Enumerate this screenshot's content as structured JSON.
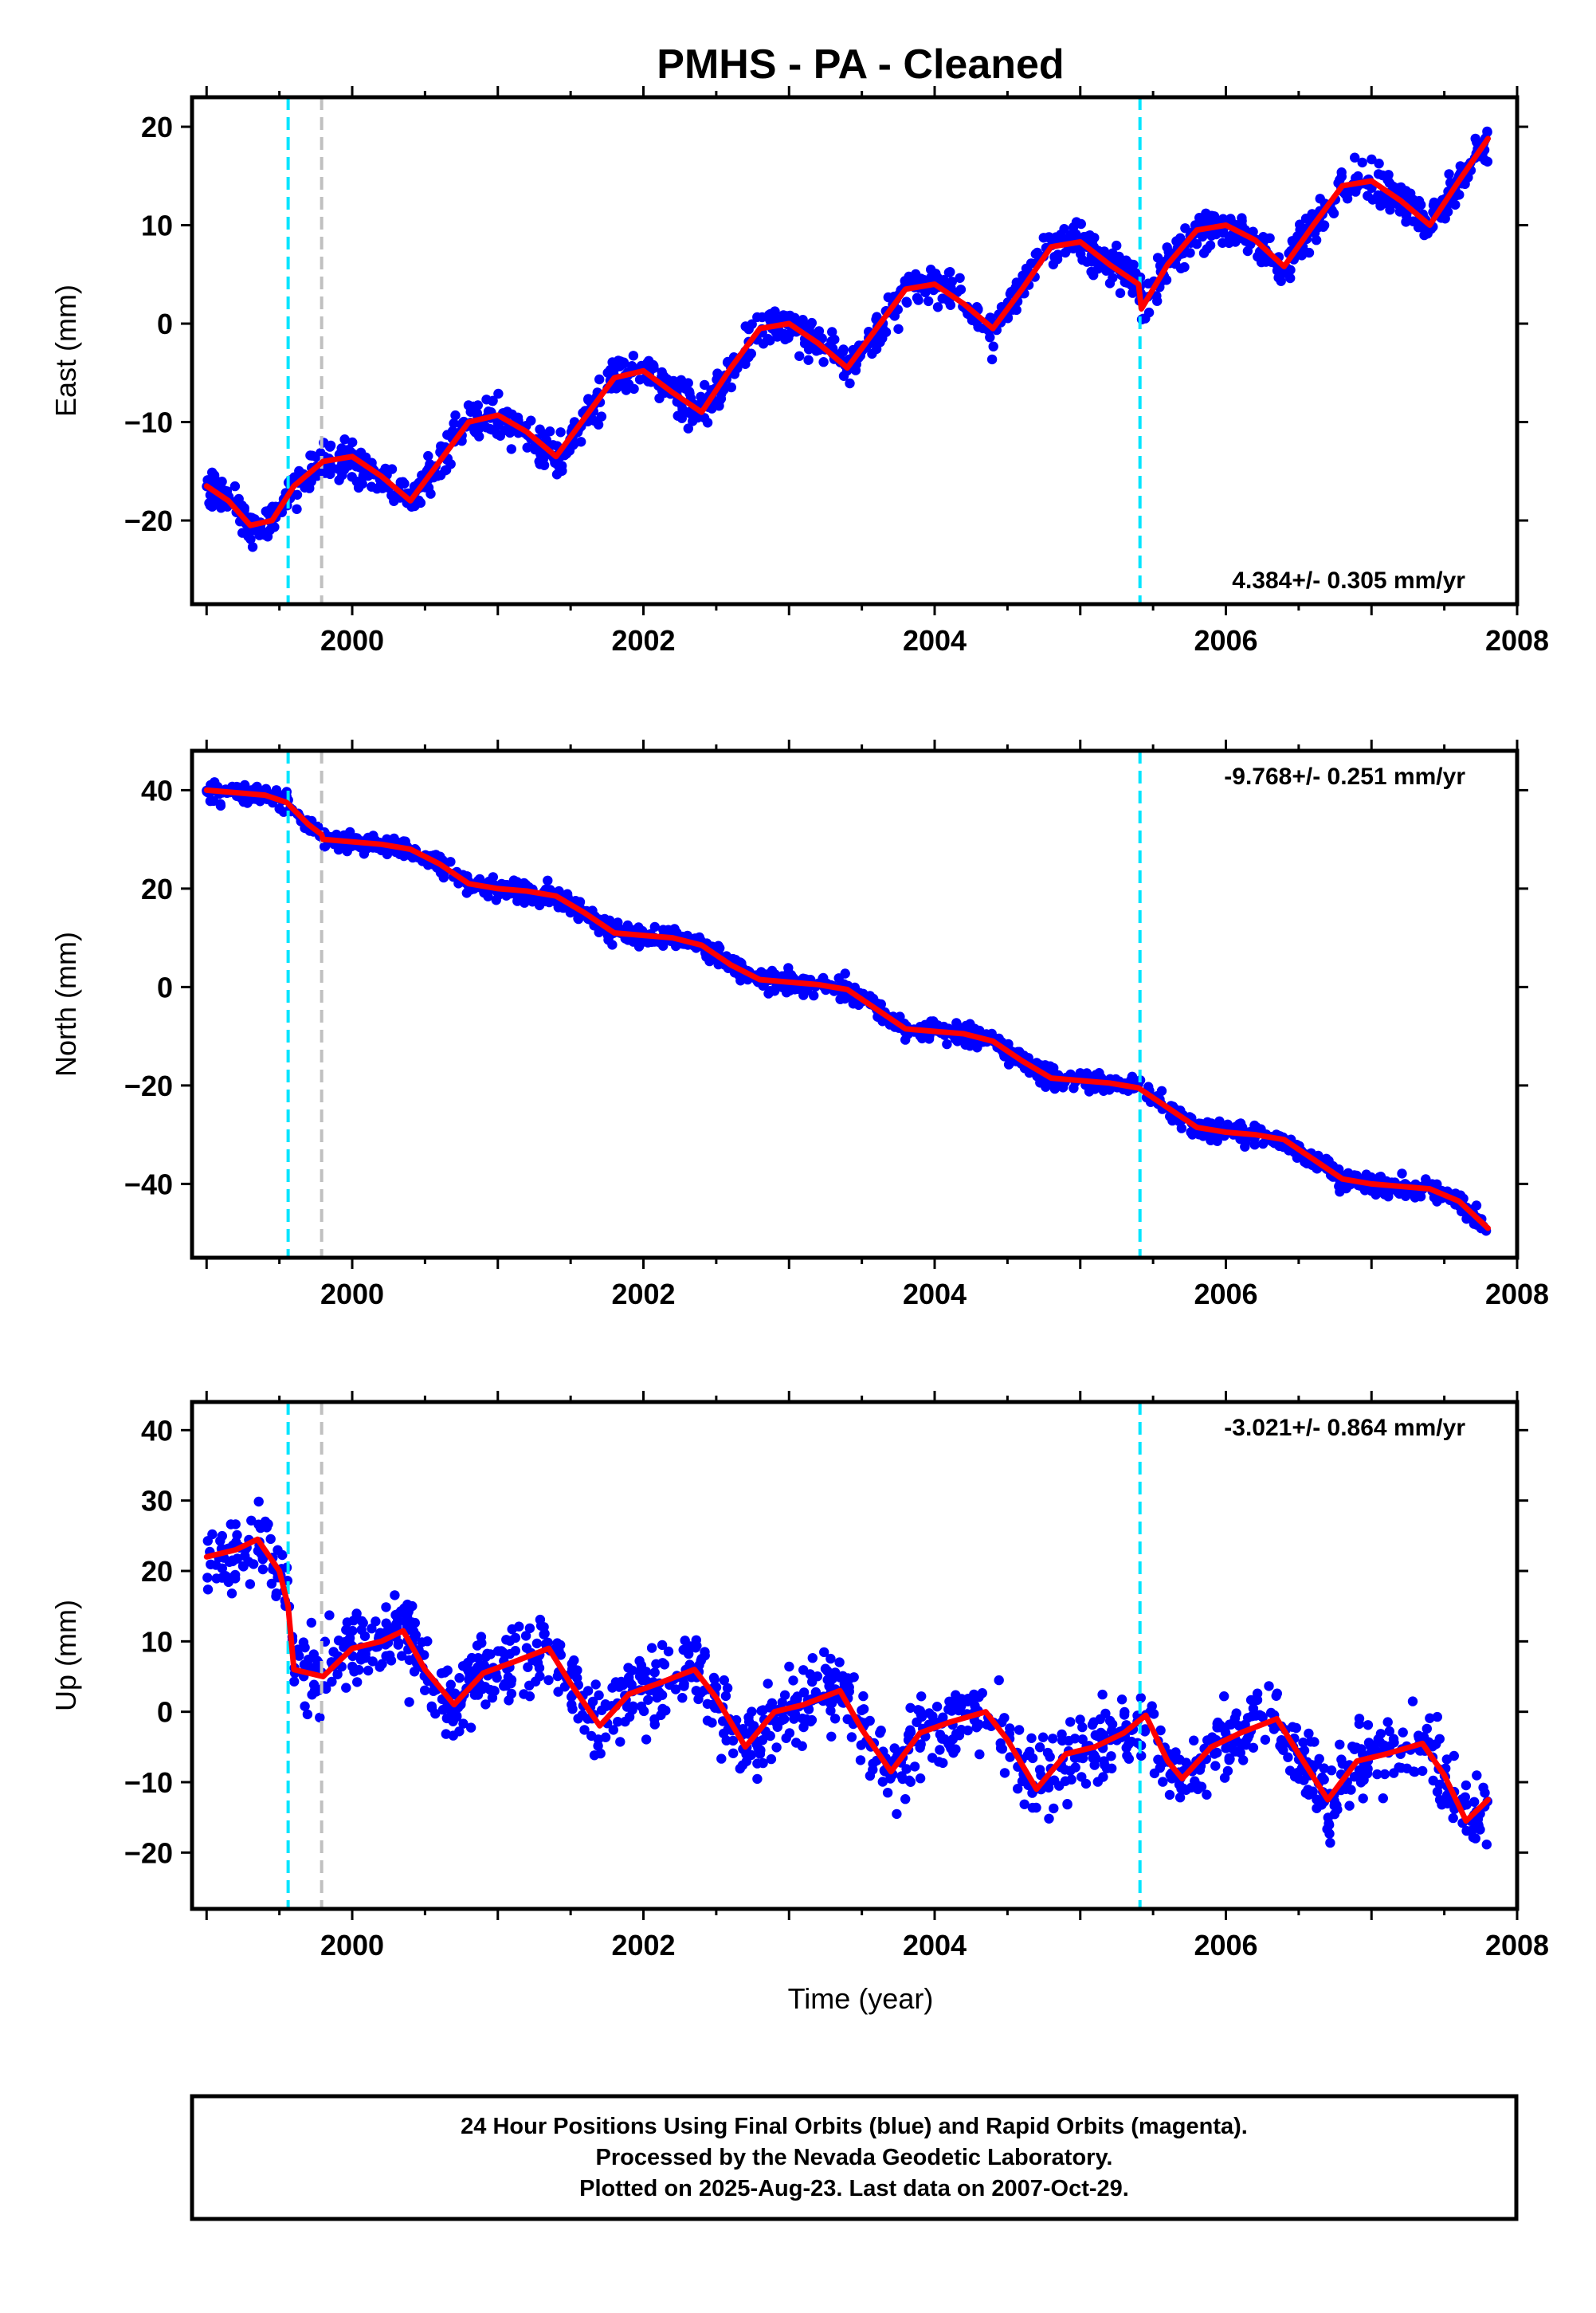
{
  "title": "PMHS  - PA - Cleaned",
  "xlabel": "Time (year)",
  "footer": [
    "24 Hour Positions Using Final Orbits (blue) and Rapid Orbits (magenta).",
    "Processed by the Nevada Geodetic Laboratory.",
    "Plotted on 2025-Aug-23. Last data on 2007-Oct-29."
  ],
  "colors": {
    "points": "#0000ff",
    "fit": "#ff0000",
    "equipment_change": "#00e5ff",
    "other_event": "#c0c0c0"
  },
  "event_lines": [
    {
      "x": 1999.56,
      "kind": "equipment_change"
    },
    {
      "x": 1999.79,
      "kind": "other_event"
    },
    {
      "x": 2005.41,
      "kind": "equipment_change"
    }
  ],
  "chart_data": [
    {
      "type": "scatter",
      "component": "East",
      "ylabel": "East (mm)",
      "rate_label": "4.384+/- 0.305 mm/yr",
      "rate_position": "bottom-right",
      "xlim": [
        1998.9,
        2008.0
      ],
      "ylim": [
        -28.5,
        23
      ],
      "xticks": [
        2000,
        2002,
        2004,
        2006,
        2008
      ],
      "xtick_labels": [
        "2000",
        "2002",
        "2004",
        "2006",
        "2008"
      ],
      "yticks": [
        -20,
        -10,
        0,
        10,
        20
      ],
      "ytick_labels": [
        "−20",
        "−10",
        "0",
        "10",
        "20"
      ],
      "fit": {
        "x": [
          1999.0,
          1999.15,
          1999.3,
          1999.45,
          1999.6,
          1999.8,
          2000.0,
          2000.2,
          2000.4,
          2000.6,
          2000.8,
          2001.0,
          2001.2,
          2001.4,
          2001.6,
          2001.8,
          2002.0,
          2002.2,
          2002.4,
          2002.6,
          2002.8,
          2003.0,
          2003.2,
          2003.4,
          2003.6,
          2003.8,
          2004.0,
          2004.2,
          2004.4,
          2004.6,
          2004.8,
          2005.0,
          2005.2,
          2005.4,
          2005.42,
          2005.6,
          2005.8,
          2006.0,
          2006.2,
          2006.4,
          2006.6,
          2006.8,
          2007.0,
          2007.2,
          2007.4,
          2007.6,
          2007.8
        ],
        "y": [
          -16.5,
          -18.0,
          -20.5,
          -20.0,
          -16.5,
          -14.0,
          -13.5,
          -15.5,
          -18.0,
          -14.0,
          -10.0,
          -9.3,
          -11.0,
          -13.5,
          -9.5,
          -5.5,
          -4.8,
          -7.0,
          -9.0,
          -4.5,
          -0.5,
          0.0,
          -2.0,
          -4.5,
          -0.5,
          3.5,
          4.0,
          2.0,
          -0.5,
          3.5,
          7.8,
          8.3,
          6.0,
          4.0,
          1.5,
          6.0,
          9.5,
          10.0,
          8.5,
          5.8,
          10.0,
          14.0,
          14.5,
          12.5,
          10.0,
          14.5,
          18.8
        ]
      },
      "scatter": {
        "spread": 1.7,
        "density": 150
      }
    },
    {
      "type": "scatter",
      "component": "North",
      "ylabel": "North (mm)",
      "rate_label": "-9.768+/- 0.251 mm/yr",
      "rate_position": "top-right",
      "xlim": [
        1998.9,
        2008.0
      ],
      "ylim": [
        -55,
        48
      ],
      "xticks": [
        2000,
        2002,
        2004,
        2006,
        2008
      ],
      "xtick_labels": [
        "2000",
        "2002",
        "2004",
        "2006",
        "2008"
      ],
      "yticks": [
        -40,
        -20,
        0,
        20,
        40
      ],
      "ytick_labels": [
        "−40",
        "−20",
        "0",
        "20",
        "40"
      ],
      "fit": {
        "x": [
          1999.0,
          1999.2,
          1999.4,
          1999.55,
          1999.7,
          1999.79,
          1999.8,
          2000.0,
          2000.2,
          2000.4,
          2000.6,
          2000.8,
          2001.0,
          2001.2,
          2001.4,
          2001.6,
          2001.8,
          2002.0,
          2002.2,
          2002.4,
          2002.6,
          2002.8,
          2003.0,
          2003.2,
          2003.4,
          2003.6,
          2003.8,
          2004.0,
          2004.2,
          2004.4,
          2004.6,
          2004.8,
          2005.0,
          2005.2,
          2005.4,
          2005.6,
          2005.8,
          2006.0,
          2006.2,
          2006.4,
          2006.6,
          2006.8,
          2007.0,
          2007.2,
          2007.4,
          2007.6,
          2007.8
        ],
        "y": [
          40.0,
          39.5,
          39.0,
          37.5,
          33.0,
          31.0,
          30.0,
          29.5,
          29.0,
          28.0,
          25.0,
          21.0,
          20.0,
          19.5,
          18.5,
          15.0,
          11.0,
          10.5,
          10.0,
          8.5,
          4.5,
          1.5,
          1.0,
          0.5,
          -0.5,
          -4.5,
          -8.5,
          -9.0,
          -9.5,
          -11.0,
          -15.0,
          -18.5,
          -19.0,
          -19.5,
          -20.5,
          -24.5,
          -28.5,
          -29.5,
          -30.0,
          -31.0,
          -35.0,
          -39.0,
          -40.0,
          -40.5,
          -41.0,
          -43.5,
          -49.0
        ]
      },
      "scatter": {
        "spread": 1.7,
        "density": 150
      }
    },
    {
      "type": "scatter",
      "component": "Up",
      "ylabel": "Up (mm)",
      "rate_label": "-3.021+/- 0.864 mm/yr",
      "rate_position": "top-right",
      "xlim": [
        1998.9,
        2008.0
      ],
      "ylim": [
        -28,
        44
      ],
      "xticks": [
        2000,
        2002,
        2004,
        2006,
        2008
      ],
      "xtick_labels": [
        "2000",
        "2002",
        "2004",
        "2006",
        "2008"
      ],
      "yticks": [
        -20,
        -10,
        0,
        10,
        20,
        30,
        40
      ],
      "ytick_labels": [
        "−20",
        "−10",
        "0",
        "10",
        "20",
        "30",
        "40"
      ],
      "fit": {
        "x": [
          1999.0,
          1999.2,
          1999.35,
          1999.5,
          1999.56,
          1999.6,
          1999.8,
          2000.0,
          2000.2,
          2000.35,
          2000.5,
          2000.7,
          2000.9,
          2001.1,
          2001.35,
          2001.5,
          2001.7,
          2001.9,
          2002.1,
          2002.35,
          2002.5,
          2002.7,
          2002.9,
          2003.1,
          2003.35,
          2003.5,
          2003.7,
          2003.9,
          2004.1,
          2004.35,
          2004.5,
          2004.7,
          2004.9,
          2005.1,
          2005.3,
          2005.45,
          2005.6,
          2005.7,
          2005.9,
          2006.1,
          2006.35,
          2006.5,
          2006.7,
          2006.9,
          2007.1,
          2007.35,
          2007.5,
          2007.65,
          2007.8
        ],
        "y": [
          22.0,
          23.0,
          24.5,
          20.0,
          15.0,
          6.0,
          5.0,
          9.0,
          10.0,
          11.5,
          6.0,
          1.0,
          5.5,
          7.0,
          9.0,
          4.0,
          -2.0,
          2.5,
          4.0,
          6.0,
          2.0,
          -5.0,
          0.0,
          1.0,
          3.0,
          -2.5,
          -8.5,
          -3.0,
          -1.5,
          0.0,
          -4.0,
          -11.0,
          -6.0,
          -5.0,
          -3.0,
          -0.5,
          -7.0,
          -9.5,
          -5.0,
          -3.0,
          -1.0,
          -6.0,
          -12.5,
          -7.0,
          -6.0,
          -4.5,
          -9.0,
          -15.5,
          -12.5
        ]
      },
      "scatter": {
        "spread": 4.6,
        "density": 140
      }
    }
  ]
}
